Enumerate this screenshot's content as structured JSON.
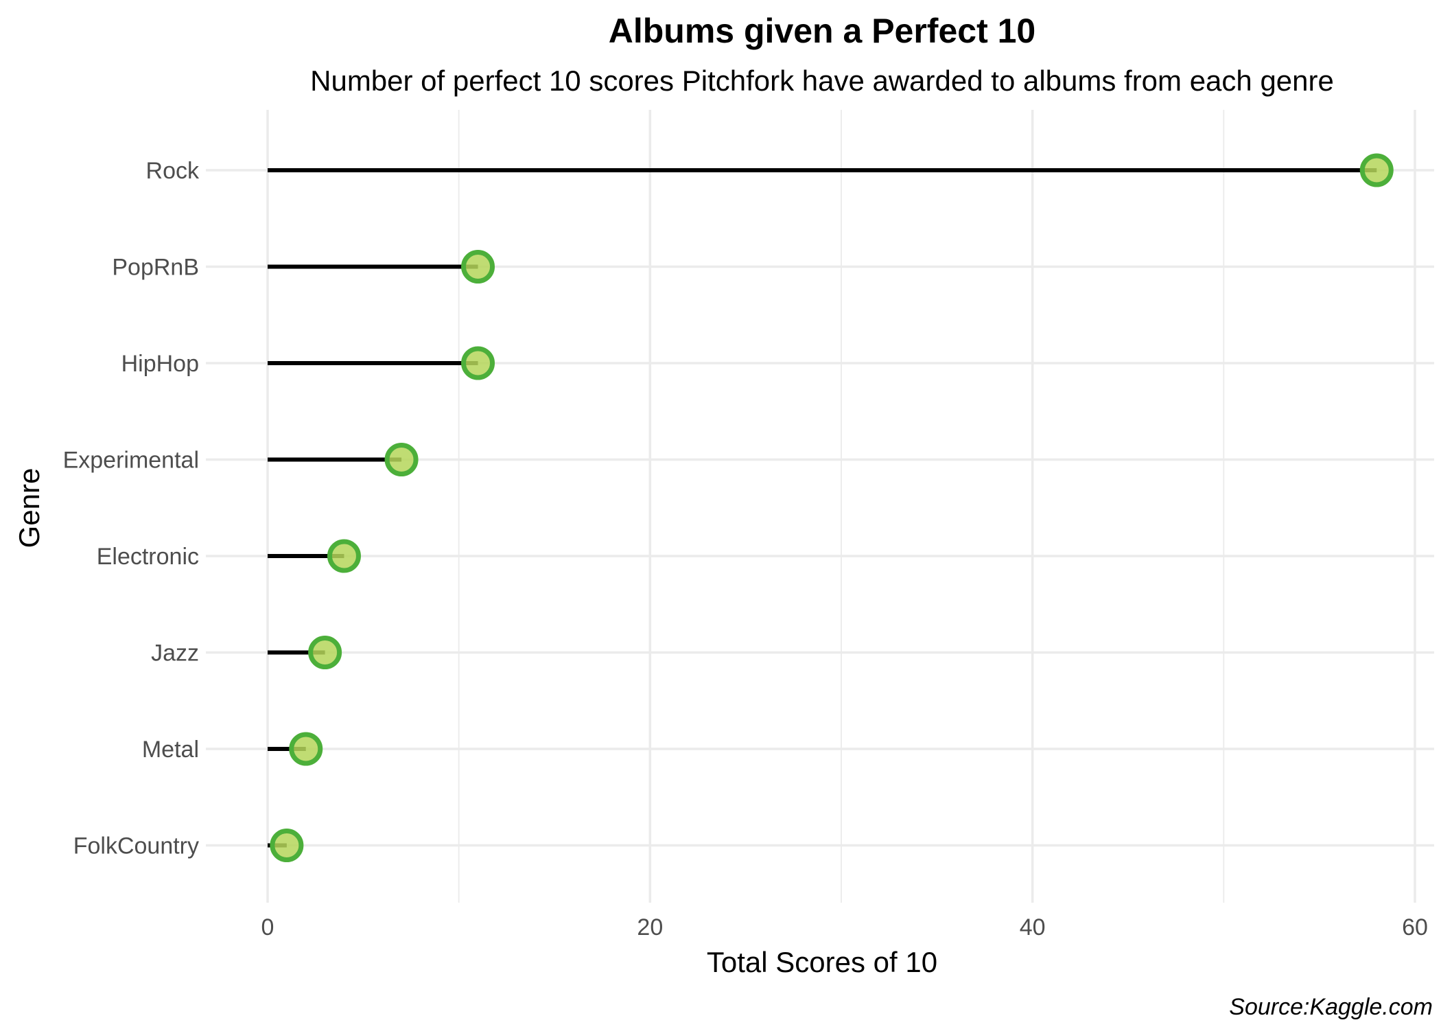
{
  "chart_data": {
    "type": "lollipop",
    "title": "Albums given a Perfect 10",
    "subtitle": "Number of perfect 10 scores Pitchfork have awarded to albums from each genre",
    "xlabel": "Total Scores of 10",
    "ylabel": "Genre",
    "caption": "Source:Kaggle.com",
    "xlim": [
      0,
      60
    ],
    "x_ticks": [
      "0",
      "20",
      "40",
      "60"
    ],
    "grid": true,
    "legend": "none",
    "categories": [
      "Rock",
      "PopRnB",
      "HipHop",
      "Experimental",
      "Electronic",
      "Jazz",
      "Metal",
      "FolkCountry"
    ],
    "values": [
      58,
      11,
      11,
      7,
      4,
      3,
      2,
      1
    ],
    "colors": {
      "stem": "#000000",
      "point_fill": "#b5d65a",
      "point_stroke": "#4caf3a",
      "grid": "#ebebeb"
    }
  }
}
